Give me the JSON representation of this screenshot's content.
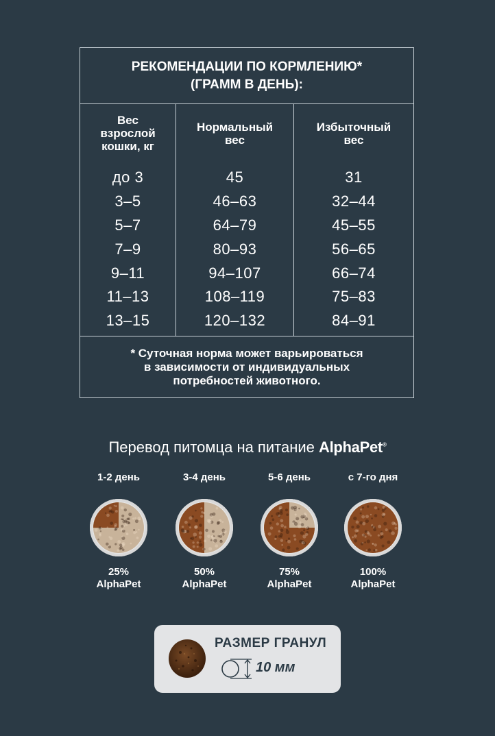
{
  "feeding_table": {
    "title_line1": "РЕКОМЕНДАЦИИ ПО КОРМЛЕНИЮ*",
    "title_line2": "(ГРАММ В ДЕНЬ):",
    "columns": [
      {
        "header_lines": [
          "Вес",
          "взрослой",
          "кошки, кг"
        ]
      },
      {
        "header_lines": [
          "Нормальный",
          "вес"
        ]
      },
      {
        "header_lines": [
          "Избыточный",
          "вес"
        ]
      }
    ],
    "rows": [
      [
        "до 3",
        "45",
        "31"
      ],
      [
        "3–5",
        "46–63",
        "32–44"
      ],
      [
        "5–7",
        "64–79",
        "45–55"
      ],
      [
        "7–9",
        "80–93",
        "56–65"
      ],
      [
        "9–11",
        "94–107",
        "66–74"
      ],
      [
        "11–13",
        "108–119",
        "75–83"
      ],
      [
        "13–15",
        "120–132",
        "84–91"
      ]
    ],
    "footnote_lines": [
      "* Суточная норма может варьироваться",
      "в зависимости от индивидуальных",
      "потребностей животного."
    ]
  },
  "transition": {
    "title": "Перевод питомца на питание",
    "brand": "AlphaPet",
    "brand_mark": "®",
    "steps": [
      {
        "label": "1-2 день",
        "percent": "25%",
        "brand": "AlphaPet",
        "fraction": 0.25
      },
      {
        "label": "3-4 день",
        "percent": "50%",
        "brand": "AlphaPet",
        "fraction": 0.5
      },
      {
        "label": "5-6 день",
        "percent": "75%",
        "brand": "AlphaPet",
        "fraction": 0.75
      },
      {
        "label": "с 7-го дня",
        "percent": "100%",
        "brand": "AlphaPet",
        "fraction": 1.0
      }
    ]
  },
  "granule": {
    "title": "РАЗМЕР ГРАНУЛ",
    "size": "10 мм"
  },
  "colors": {
    "background": "#2b3a45",
    "text": "#ffffff",
    "kibble_new": "#8a4a22",
    "kibble_old": "#c8b39a",
    "panel": "#e3e4e6"
  }
}
